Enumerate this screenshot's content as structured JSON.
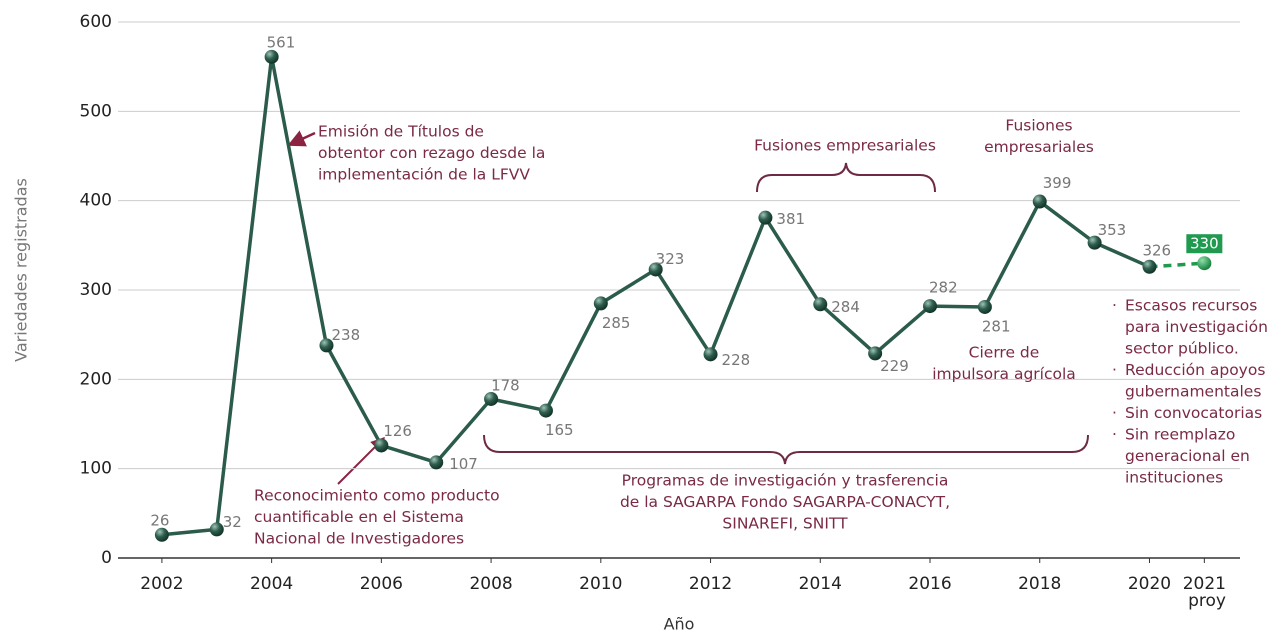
{
  "chart_data": {
    "type": "line",
    "y_label": "Variedades registradas",
    "x_label": "Año",
    "x": [
      2002,
      2003,
      2004,
      2005,
      2006,
      2007,
      2008,
      2009,
      2010,
      2011,
      2012,
      2013,
      2014,
      2015,
      2016,
      2017,
      2018,
      2019,
      2020,
      2021
    ],
    "series": [
      {
        "color": "#2b5b4b",
        "values": [
          26,
          32,
          561,
          238,
          126,
          107,
          178,
          165,
          285,
          323,
          228,
          381,
          284,
          229,
          282,
          281,
          399,
          353,
          326,
          330
        ]
      }
    ],
    "last_segment_dashed": true,
    "projection_color": "#1f9a4f",
    "xlim": [
      2001.2,
      2021.65
    ],
    "ylim": [
      0,
      600
    ],
    "xticks": [
      2002,
      2004,
      2006,
      2008,
      2010,
      2012,
      2014,
      2016,
      2018,
      2020,
      {
        "value": 2021,
        "label": "2021 proy"
      }
    ],
    "yticks": [
      0,
      100,
      200,
      300,
      400,
      500,
      600
    ],
    "grid": true,
    "annotations": [
      [
        "Emisión de Títulos de",
        "obtentor con rezago desde la",
        "implementación de la LFVV"
      ],
      [
        "Reconocimiento como producto",
        "cuantificable en el Sistema",
        "Nacional de Investigadores"
      ],
      [
        "Fusiones empresariales"
      ],
      [
        "Fusiones",
        "empresariales"
      ],
      [
        "Cierre de",
        "impulsora agrícola"
      ],
      [
        "Programas de investigación y trasferencia",
        "de la SAGARPA Fondo SAGARPA-CONACYT,",
        "SINAREFI, SNITT"
      ]
    ],
    "bullets": [
      [
        "Escasos recursos",
        "para investigación",
        "sector público."
      ],
      [
        "Reducción apoyos",
        "gubernamentales"
      ],
      [
        "Sin convocatorias"
      ],
      [
        "Sin reemplazo",
        "generacional en",
        "instituciones"
      ]
    ]
  }
}
